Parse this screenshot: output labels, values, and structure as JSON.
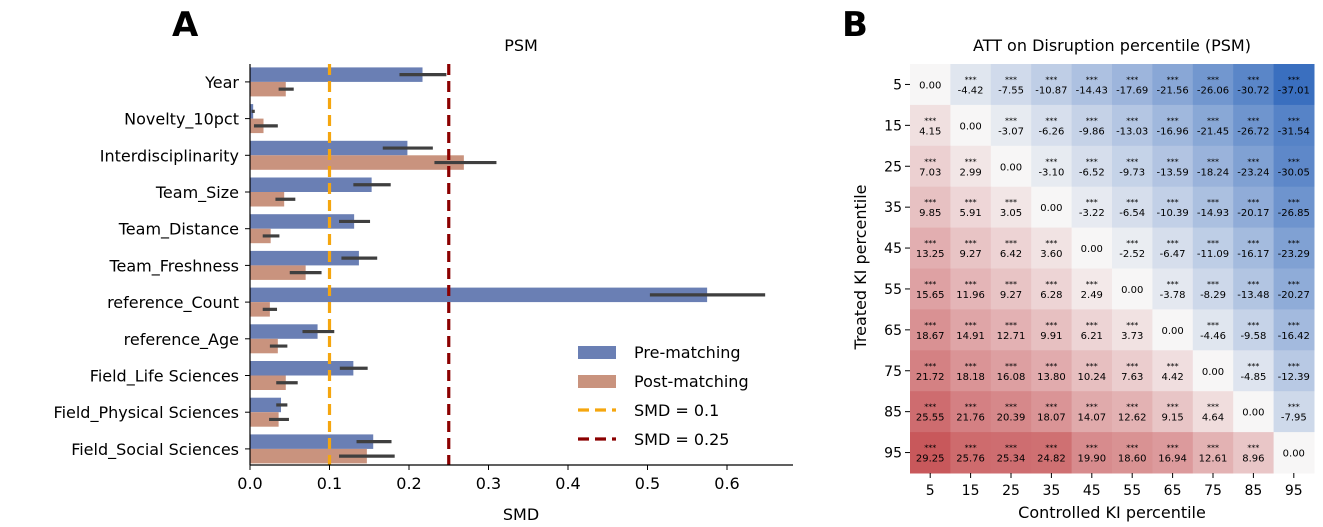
{
  "chart_data": [
    {
      "type": "bar",
      "panel_label": "A",
      "title": "PSM",
      "xlabel": "SMD",
      "ylabel": "",
      "orientation": "horizontal",
      "categories": [
        "Year",
        "Novelty_10pct",
        "Interdisciplinarity",
        "Team_Size",
        "Team_Distance",
        "Team_Freshness",
        "reference_Count",
        "reference_Age",
        "Field_Life Sciences",
        "Field_Physical Sciences",
        "Field_Social Sciences"
      ],
      "series": [
        {
          "name": "Pre-matching",
          "color": "#6a7fb4",
          "values": [
            0.217,
            0.004,
            0.198,
            0.153,
            0.131,
            0.137,
            0.575,
            0.085,
            0.13,
            0.039,
            0.155
          ],
          "ci": [
            [
              0.188,
              0.247
            ],
            [
              0.002,
              0.006
            ],
            [
              0.167,
              0.23
            ],
            [
              0.13,
              0.177
            ],
            [
              0.112,
              0.151
            ],
            [
              0.115,
              0.16
            ],
            [
              0.503,
              0.648
            ],
            [
              0.066,
              0.106
            ],
            [
              0.113,
              0.148
            ],
            [
              0.033,
              0.047
            ],
            [
              0.134,
              0.178
            ]
          ]
        },
        {
          "name": "Post-matching",
          "color": "#c9937e",
          "values": [
            0.045,
            0.017,
            0.269,
            0.043,
            0.026,
            0.07,
            0.025,
            0.035,
            0.045,
            0.036,
            0.147
          ],
          "ci": [
            [
              0.036,
              0.055
            ],
            [
              0.005,
              0.035
            ],
            [
              0.232,
              0.31
            ],
            [
              0.032,
              0.057
            ],
            [
              0.016,
              0.037
            ],
            [
              0.05,
              0.09
            ],
            [
              0.016,
              0.034
            ],
            [
              0.025,
              0.047
            ],
            [
              0.033,
              0.06
            ],
            [
              0.024,
              0.049
            ],
            [
              0.112,
              0.182
            ]
          ]
        }
      ],
      "reference_lines": [
        {
          "name": "SMD = 0.1",
          "value": 0.1,
          "color": "#f5a60f",
          "style": "dashed"
        },
        {
          "name": "SMD = 0.25",
          "value": 0.25,
          "color": "#8b0000",
          "style": "dashed"
        }
      ],
      "xlim": [
        0,
        0.68
      ],
      "xticks": [
        "0.0",
        "0.1",
        "0.2",
        "0.3",
        "0.4",
        "0.5",
        "0.6"
      ],
      "legend_position": "lower-right",
      "grid": false
    },
    {
      "type": "heatmap",
      "panel_label": "B",
      "title": "ATT on Disruption percentile (PSM)",
      "xlabel": "Controlled KI percentile",
      "ylabel": "Treated KI percentile",
      "x_labels": [
        "5",
        "15",
        "25",
        "35",
        "45",
        "55",
        "65",
        "75",
        "85",
        "95"
      ],
      "y_labels": [
        "5",
        "15",
        "25",
        "35",
        "45",
        "55",
        "65",
        "75",
        "85",
        "95"
      ],
      "values": [
        [
          "0.00",
          "-4.42",
          "-7.55",
          "-10.87",
          "-14.43",
          "-17.69",
          "-21.56",
          "-26.06",
          "-30.72",
          "-37.01"
        ],
        [
          "4.15",
          "0.00",
          "-3.07",
          "-6.26",
          "-9.86",
          "-13.03",
          "-16.96",
          "-21.45",
          "-26.72",
          "-31.54"
        ],
        [
          "7.03",
          "2.99",
          "0.00",
          "-3.10",
          "-6.52",
          "-9.73",
          "-13.59",
          "-18.24",
          "-23.24",
          "-30.05"
        ],
        [
          "9.85",
          "5.91",
          "3.05",
          "0.00",
          "-3.22",
          "-6.54",
          "-10.39",
          "-14.93",
          "-20.17",
          "-26.85"
        ],
        [
          "13.25",
          "9.27",
          "6.42",
          "3.60",
          "0.00",
          "-2.52",
          "-6.47",
          "-11.09",
          "-16.17",
          "-23.29"
        ],
        [
          "15.65",
          "11.96",
          "9.27",
          "6.28",
          "2.49",
          "0.00",
          "-3.78",
          "-8.29",
          "-13.48",
          "-20.27"
        ],
        [
          "18.67",
          "14.91",
          "12.71",
          "9.91",
          "6.21",
          "3.73",
          "0.00",
          "-4.46",
          "-9.58",
          "-16.42"
        ],
        [
          "21.72",
          "18.18",
          "16.08",
          "13.80",
          "10.24",
          "7.63",
          "4.42",
          "0.00",
          "-4.85",
          "-12.39"
        ],
        [
          "25.55",
          "21.76",
          "20.39",
          "18.07",
          "14.07",
          "12.62",
          "9.15",
          "4.64",
          "0.00",
          "-7.95"
        ],
        [
          "29.25",
          "25.76",
          "25.34",
          "24.82",
          "19.90",
          "18.60",
          "16.94",
          "12.61",
          "8.96",
          "0.00"
        ]
      ],
      "significance_mark": "***",
      "color_scale": {
        "negative": "#3a6fbf",
        "zero": "#f7f6f6",
        "positive": "#c8585b",
        "vmin": -37.01,
        "vmax": 29.25
      }
    }
  ]
}
